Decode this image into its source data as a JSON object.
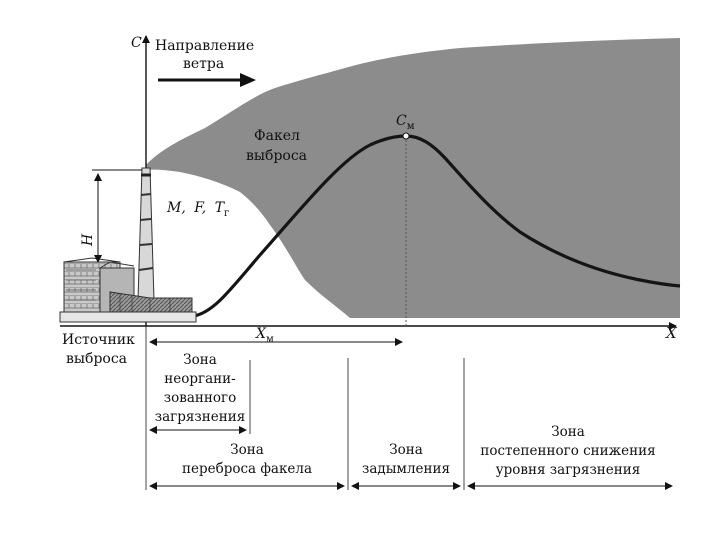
{
  "axes": {
    "y_label": "C",
    "x_label": "X"
  },
  "wind": {
    "line1": "Направление",
    "line2": "ветра"
  },
  "plume": {
    "line1": "Факел",
    "line2": "выброса"
  },
  "params": {
    "m": "M",
    "f": "F",
    "t": "T",
    "t_sub": "г",
    "sep": ","
  },
  "peak": {
    "label": "C",
    "sub": "м"
  },
  "height": {
    "label": "H"
  },
  "source": {
    "line1": "Источник",
    "line2": "выброса"
  },
  "xm": {
    "label": "X",
    "sub": "м"
  },
  "zones": {
    "unorganized": [
      "Зона",
      "неоргани-",
      "зованного",
      "загрязнения"
    ],
    "transfer": [
      "Зона",
      "переброса факела"
    ],
    "smoke": [
      "Зона",
      "задымления"
    ],
    "decline": [
      "Зона",
      "постепенного снижения",
      "уровня загрязнения"
    ]
  },
  "colors": {
    "plume": "#8c8c8c",
    "curve": "#151515",
    "axis": "#111111"
  }
}
